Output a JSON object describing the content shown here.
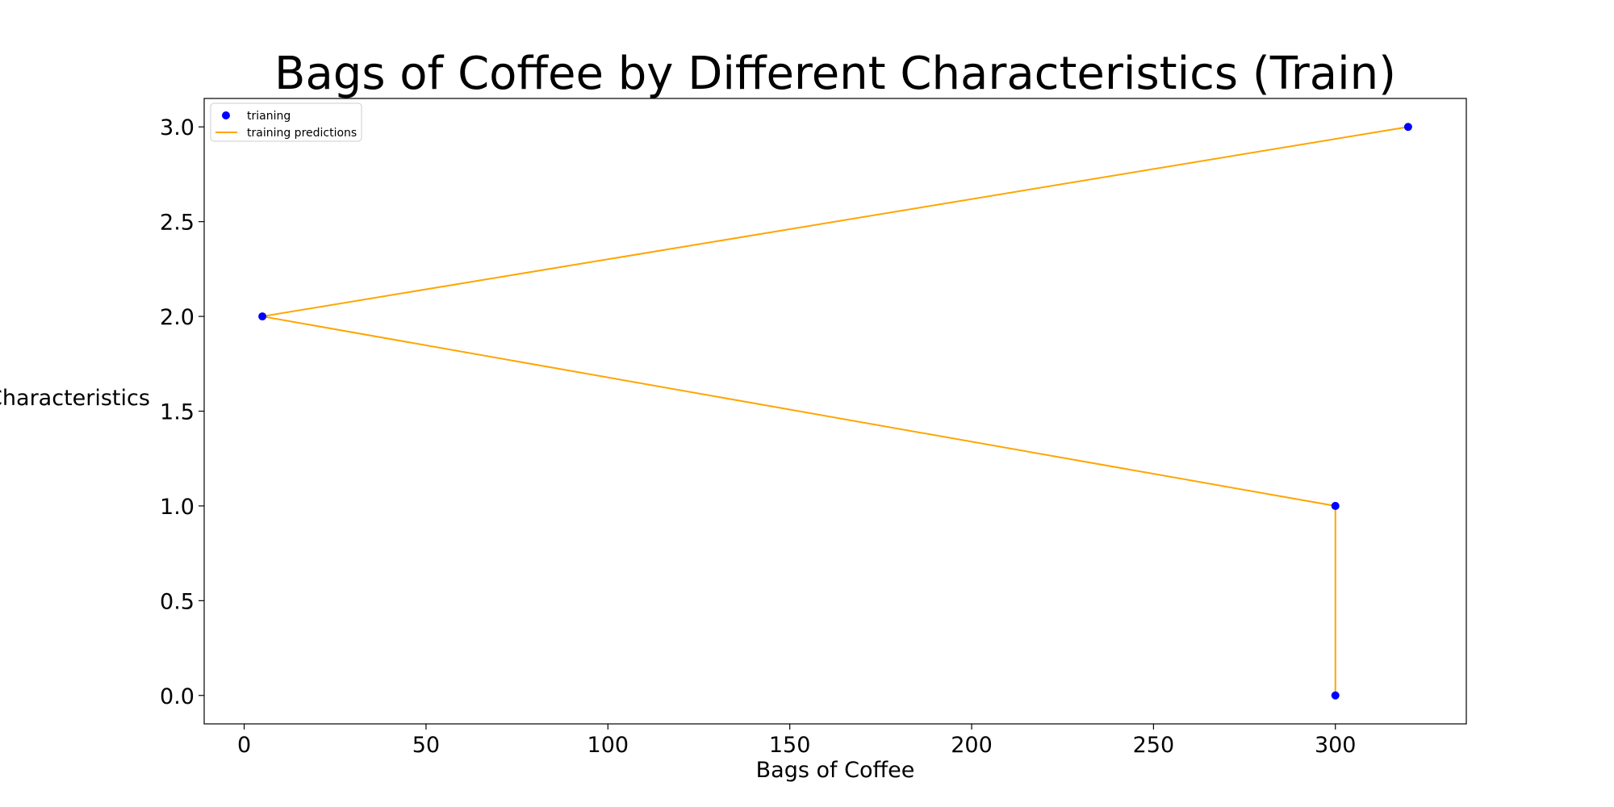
{
  "chart_data": {
    "type": "line",
    "title": "Bags of Coffee by Different Characteristics (Train)",
    "xlabel": "Bags of Coffee",
    "ylabel": "Characteristics",
    "xlim": [
      -11,
      336
    ],
    "ylim": [
      -0.15,
      3.15
    ],
    "x_ticks": [
      0,
      50,
      100,
      150,
      200,
      250,
      300
    ],
    "y_ticks": [
      0.0,
      0.5,
      1.0,
      1.5,
      2.0,
      2.5,
      3.0
    ],
    "x_tick_labels": [
      "0",
      "50",
      "100",
      "150",
      "200",
      "250",
      "300"
    ],
    "y_tick_labels": [
      "0.0",
      "0.5",
      "1.0",
      "1.5",
      "2.0",
      "2.5",
      "3.0"
    ],
    "grid": false,
    "legend_position": "top-left",
    "series": [
      {
        "name": "trianing",
        "kind": "scatter",
        "color": "#0000ff",
        "x": [
          300,
          5,
          320,
          300
        ],
        "y": [
          1,
          2,
          3,
          0
        ]
      },
      {
        "name": "training predictions",
        "kind": "line",
        "color": "#ffa500",
        "x": [
          320,
          5,
          300,
          300
        ],
        "y": [
          3,
          2,
          1,
          0
        ]
      }
    ]
  }
}
